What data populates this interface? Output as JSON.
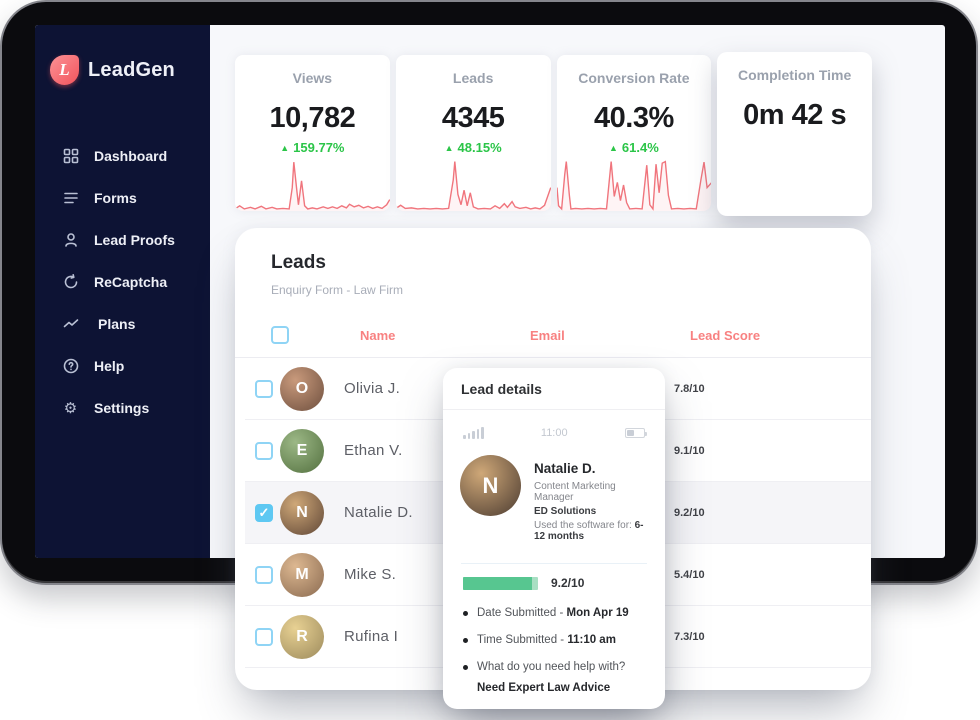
{
  "brand": {
    "name": "LeadGen",
    "logo_letter": "L"
  },
  "sidebar": {
    "items": [
      {
        "label": "Dashboard",
        "icon": "dashboard-grid-icon"
      },
      {
        "label": "Forms",
        "icon": "forms-list-icon"
      },
      {
        "label": "Lead Proofs",
        "icon": "person-icon"
      },
      {
        "label": "ReCaptcha",
        "icon": "refresh-icon"
      },
      {
        "label": "Plans",
        "icon": "trend-line-icon"
      },
      {
        "label": "Help",
        "icon": "question-circle-icon"
      },
      {
        "label": "Settings",
        "icon": "gear-icon"
      }
    ]
  },
  "stats": {
    "cards": [
      {
        "title": "Views",
        "value": "10,782",
        "delta": "159.77%",
        "trend": "up",
        "sparkline": [
          [
            0,
            96
          ],
          [
            3,
            90
          ],
          [
            6,
            96
          ],
          [
            10,
            93
          ],
          [
            13,
            96
          ],
          [
            17,
            91
          ],
          [
            20,
            96
          ],
          [
            24,
            93
          ],
          [
            27,
            96
          ],
          [
            31,
            95
          ],
          [
            35,
            96
          ],
          [
            37,
            55
          ],
          [
            38,
            6
          ],
          [
            40,
            62
          ],
          [
            41,
            88
          ],
          [
            43,
            42
          ],
          [
            45,
            90
          ],
          [
            47,
            96
          ],
          [
            50,
            94
          ],
          [
            53,
            96
          ],
          [
            57,
            92
          ],
          [
            60,
            95
          ],
          [
            63,
            92
          ],
          [
            66,
            95
          ],
          [
            69,
            90
          ],
          [
            72,
            94
          ],
          [
            74,
            87
          ],
          [
            77,
            92
          ],
          [
            80,
            89
          ],
          [
            83,
            94
          ],
          [
            86,
            91
          ],
          [
            89,
            95
          ],
          [
            92,
            92
          ],
          [
            95,
            95
          ],
          [
            98,
            88
          ],
          [
            100,
            78
          ]
        ]
      },
      {
        "title": "Leads",
        "value": "4345",
        "delta": "48.15%",
        "trend": "up",
        "sparkline": [
          [
            0,
            95
          ],
          [
            3,
            89
          ],
          [
            6,
            95
          ],
          [
            10,
            94
          ],
          [
            14,
            96
          ],
          [
            18,
            95
          ],
          [
            22,
            96
          ],
          [
            26,
            95
          ],
          [
            30,
            96
          ],
          [
            34,
            95
          ],
          [
            37,
            40
          ],
          [
            38,
            5
          ],
          [
            40,
            68
          ],
          [
            42,
            88
          ],
          [
            44,
            60
          ],
          [
            46,
            90
          ],
          [
            48,
            65
          ],
          [
            50,
            92
          ],
          [
            53,
            96
          ],
          [
            57,
            95
          ],
          [
            61,
            96
          ],
          [
            64,
            90
          ],
          [
            67,
            95
          ],
          [
            70,
            86
          ],
          [
            72,
            93
          ],
          [
            75,
            82
          ],
          [
            77,
            92
          ],
          [
            80,
            95
          ],
          [
            84,
            93
          ],
          [
            87,
            96
          ],
          [
            90,
            94
          ],
          [
            93,
            96
          ],
          [
            96,
            89
          ],
          [
            100,
            55
          ]
        ]
      },
      {
        "title": "Conversion Rate",
        "value": "40.3%",
        "delta": "61.4%",
        "trend": "up",
        "sparkline": [
          [
            0,
            55
          ],
          [
            1,
            90
          ],
          [
            3,
            96
          ],
          [
            5,
            30
          ],
          [
            6,
            5
          ],
          [
            8,
            70
          ],
          [
            9,
            96
          ],
          [
            12,
            95
          ],
          [
            16,
            96
          ],
          [
            20,
            95
          ],
          [
            24,
            96
          ],
          [
            28,
            95
          ],
          [
            32,
            96
          ],
          [
            34,
            35
          ],
          [
            35,
            5
          ],
          [
            37,
            72
          ],
          [
            39,
            45
          ],
          [
            41,
            80
          ],
          [
            43,
            50
          ],
          [
            45,
            84
          ],
          [
            47,
            96
          ],
          [
            51,
            95
          ],
          [
            55,
            96
          ],
          [
            58,
            12
          ],
          [
            60,
            88
          ],
          [
            62,
            96
          ],
          [
            64,
            10
          ],
          [
            66,
            65
          ],
          [
            68,
            8
          ],
          [
            70,
            5
          ],
          [
            72,
            70
          ],
          [
            74,
            96
          ],
          [
            78,
            95
          ],
          [
            82,
            96
          ],
          [
            86,
            95
          ],
          [
            90,
            96
          ],
          [
            93,
            40
          ],
          [
            95,
            6
          ],
          [
            97,
            55
          ],
          [
            100,
            45
          ]
        ]
      },
      {
        "title": "Completion Time",
        "value": "0m 42 s"
      }
    ]
  },
  "leads_panel": {
    "title": "Leads",
    "subtitle": "Enquiry Form - Law Firm",
    "columns": {
      "name": "Name",
      "email": "Email",
      "score": "Lead Score"
    },
    "rows": [
      {
        "name": "Olivia J.",
        "email": "",
        "score": "7.8/10",
        "checked": false
      },
      {
        "name": "Ethan V.",
        "email": "",
        "score": "9.1/10",
        "checked": false
      },
      {
        "name": "Natalie D.",
        "email": "",
        "score": "9.2/10",
        "checked": true,
        "selected": true
      },
      {
        "name": "Mike S.",
        "email": "",
        "score": "5.4/10",
        "checked": false
      },
      {
        "name": "Rufina I",
        "email": "",
        "score": "7.3/10",
        "checked": false
      }
    ]
  },
  "lead_details": {
    "title": "Lead details",
    "status_bar": {
      "time": "11:00"
    },
    "person": {
      "name": "Natalie D.",
      "role": "Content Marketing Manager",
      "company": "ED Solutions",
      "usage_prefix": "Used the software for: ",
      "usage_value": "6-12 months"
    },
    "score": {
      "value": 9.2,
      "max": 10,
      "label": "9.2/10"
    },
    "details": [
      {
        "label": "Date Submitted - ",
        "value": "Mon Apr 19"
      },
      {
        "label": "Time Submitted - ",
        "value": "11:10 am"
      },
      {
        "label": "What do you need help with?",
        "value": "Need Expert Law Advice"
      }
    ]
  },
  "colors": {
    "sidebar_bg": "#0d1334",
    "accent_coral": "#f88181",
    "logo_red": "#f2545c",
    "green_delta": "#2bc548",
    "progress_green": "#57c690",
    "sparkline_red": "#f0757d",
    "checkbox_blue": "#5ec8f2",
    "screen_bg": "#f7f8fb"
  }
}
